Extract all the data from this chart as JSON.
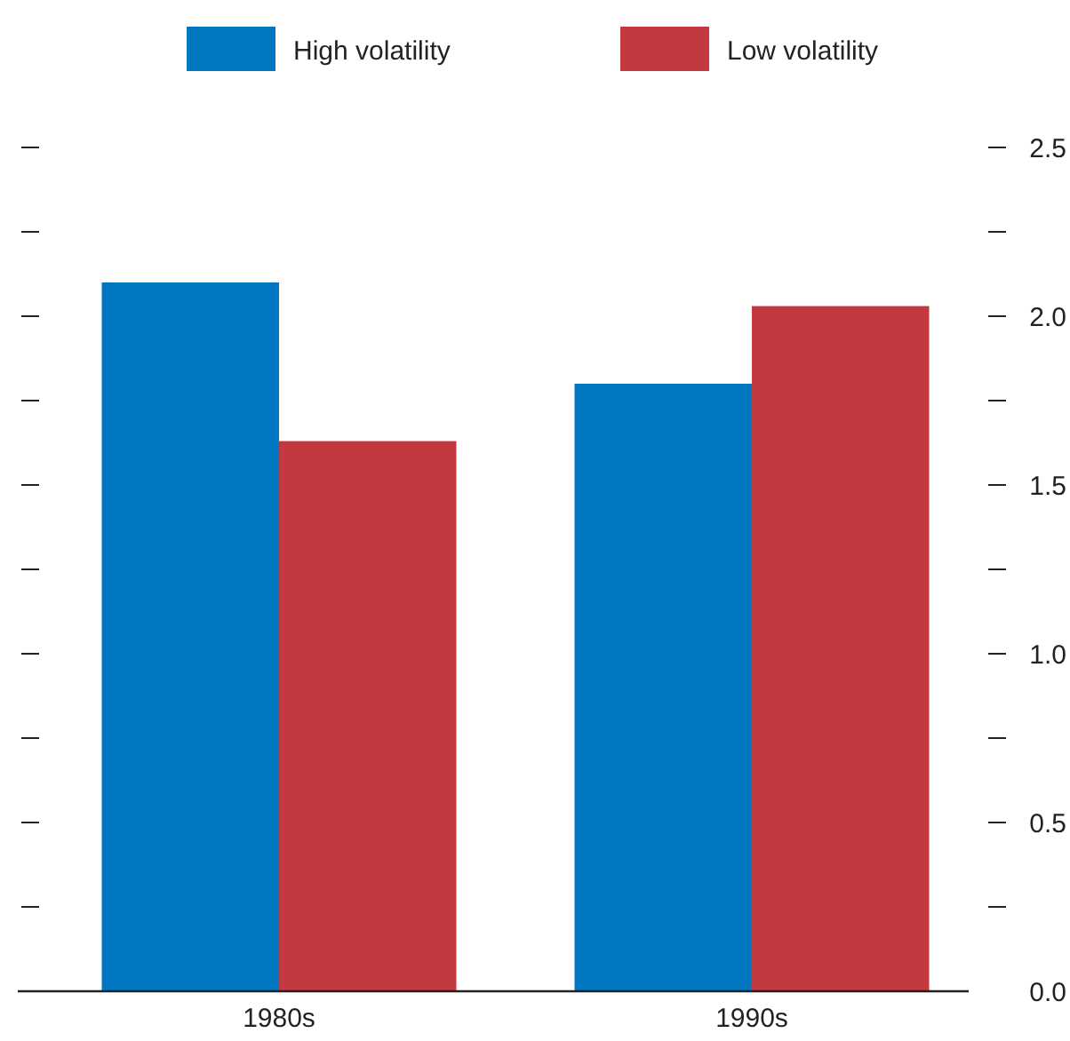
{
  "chart_data": {
    "type": "bar",
    "categories": [
      "1980s",
      "1990s"
    ],
    "series": [
      {
        "name": "High volatility",
        "color": "#0077c0",
        "values": [
          2.1,
          1.8
        ]
      },
      {
        "name": "Low volatility",
        "color": "#c23a40",
        "values": [
          1.63,
          2.03
        ]
      }
    ],
    "ylim": [
      0,
      2.5
    ],
    "yticks": [
      {
        "value": 0,
        "label": "0.0"
      },
      {
        "value": 0.25,
        "label": null
      },
      {
        "value": 0.5,
        "label": "0.5"
      },
      {
        "value": 0.75,
        "label": null
      },
      {
        "value": 1,
        "label": "1.0"
      },
      {
        "value": 1.25,
        "label": null
      },
      {
        "value": 1.5,
        "label": "1.5"
      },
      {
        "value": 1.75,
        "label": null
      },
      {
        "value": 2,
        "label": "2.0"
      },
      {
        "value": 2.25,
        "label": null
      },
      {
        "value": 2.5,
        "label": "2.5"
      }
    ],
    "legend": "top",
    "grid": false
  }
}
